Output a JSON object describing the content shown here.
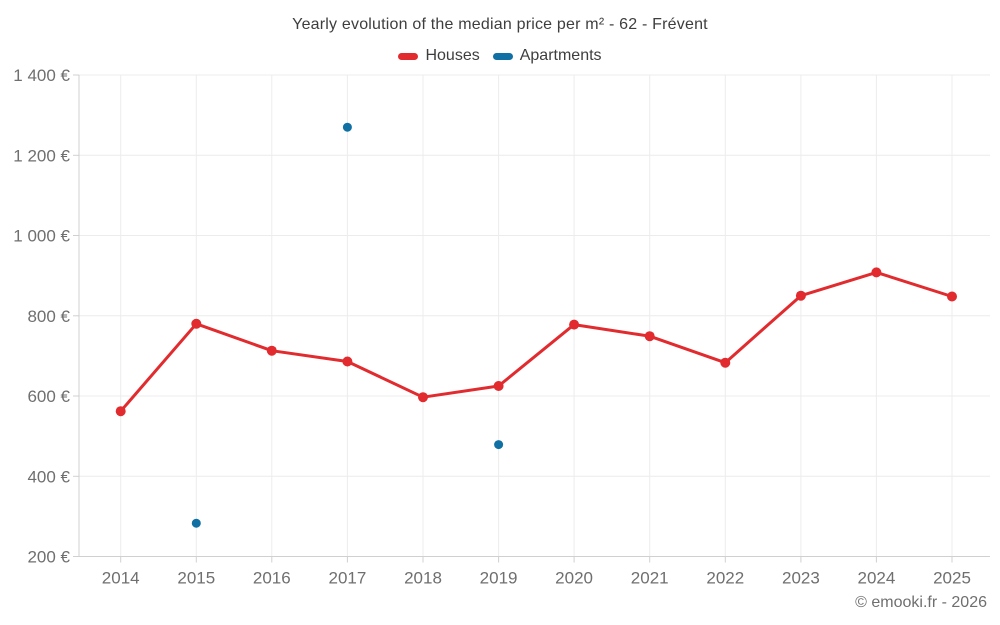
{
  "title": "Yearly evolution of the median price per m² - 62 - Frévent",
  "footer": {
    "copyright": "© emooki.fr - 2026"
  },
  "legend": {
    "items": [
      {
        "label": "Houses",
        "color": "#e12b2e"
      },
      {
        "label": "Apartments",
        "color": "#1070a4"
      }
    ]
  },
  "chart_data": {
    "type": "line",
    "title": "Yearly evolution of the median price per m² - 62 - Frévent",
    "x": [
      2014,
      2015,
      2016,
      2017,
      2018,
      2019,
      2020,
      2021,
      2022,
      2023,
      2024,
      2025
    ],
    "series": [
      {
        "name": "Houses",
        "mode": "line+markers",
        "color": "#e12b2e",
        "marker_radius": 5,
        "line_width": 3,
        "values": [
          562,
          780,
          713,
          686,
          597,
          625,
          778,
          749,
          683,
          850,
          908,
          848
        ]
      },
      {
        "name": "Apartments",
        "mode": "markers",
        "color": "#1070a4",
        "marker_radius": 4.5,
        "line_width": 0,
        "values": [
          null,
          283,
          null,
          1270,
          null,
          479,
          null,
          null,
          null,
          null,
          null,
          null
        ]
      }
    ],
    "ylim": [
      200,
      1400
    ],
    "ytick_step": 200,
    "yticks": [
      {
        "value": 200,
        "label": "200 €"
      },
      {
        "value": 400,
        "label": "400 €"
      },
      {
        "value": 600,
        "label": "600 €"
      },
      {
        "value": 800,
        "label": "800 €"
      },
      {
        "value": 1000,
        "label": "1 000 €"
      },
      {
        "value": 1200,
        "label": "1 200 €"
      },
      {
        "value": 1400,
        "label": "1 400 €"
      }
    ],
    "ylabel": "",
    "xlabel": "",
    "grid": true,
    "legend_position": "top",
    "annotations": [
      "© emooki.fr - 2026"
    ]
  },
  "colors": {
    "grid": "#ececec",
    "axis": "#d0d0d0",
    "tick_text": "#6f6f6f",
    "title_text": "#3e3e3e"
  }
}
